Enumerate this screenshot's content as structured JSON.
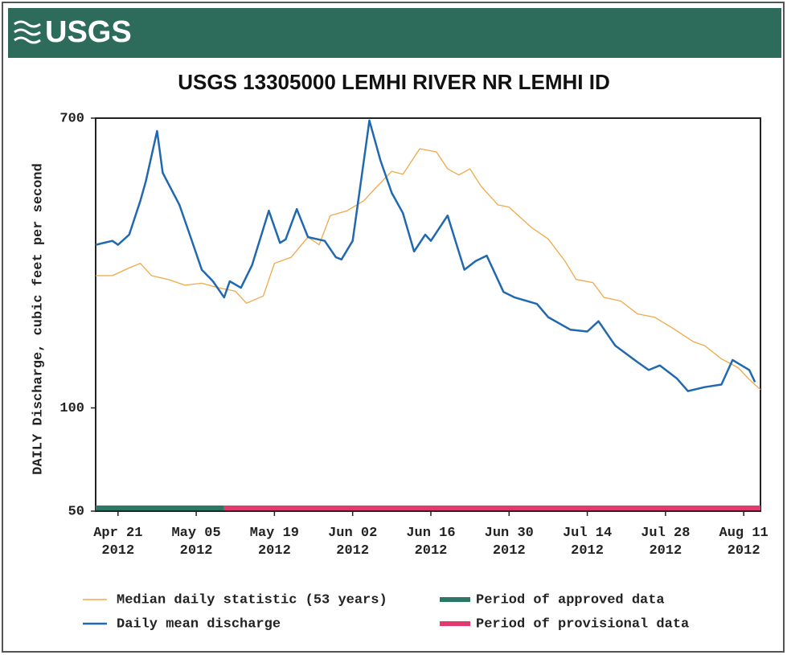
{
  "header": {
    "logo": "USGS"
  },
  "chart_data": {
    "type": "line",
    "title": "USGS 13305000 LEMHI RIVER NR LEMHI ID",
    "y_label": "DAILY Discharge, cubic feet per second",
    "log_y": true,
    "xlim": [
      "2012-04-17",
      "2012-08-14"
    ],
    "xticks": [
      {
        "value": "2012-04-21",
        "label": "Apr 21\n2012"
      },
      {
        "value": "2012-05-05",
        "label": "May 05\n2012"
      },
      {
        "value": "2012-05-19",
        "label": "May 19\n2012"
      },
      {
        "value": "2012-06-02",
        "label": "Jun 02\n2012"
      },
      {
        "value": "2012-06-16",
        "label": "Jun 16\n2012"
      },
      {
        "value": "2012-06-30",
        "label": "Jun 30\n2012"
      },
      {
        "value": "2012-07-14",
        "label": "Jul 14\n2012"
      },
      {
        "value": "2012-07-28",
        "label": "Jul 28\n2012"
      },
      {
        "value": "2012-08-11",
        "label": "Aug 11\n2012"
      }
    ],
    "ylim": [
      50,
      700
    ],
    "yticks": [
      50,
      100,
      700
    ],
    "series": [
      {
        "name": "Median daily statistic (53 years)",
        "color": "#f0a848",
        "x": [
          "2012-04-17",
          "2012-04-20",
          "2012-04-23",
          "2012-04-25",
          "2012-04-27",
          "2012-04-30",
          "2012-05-03",
          "2012-05-06",
          "2012-05-09",
          "2012-05-12",
          "2012-05-14",
          "2012-05-17",
          "2012-05-19",
          "2012-05-22",
          "2012-05-25",
          "2012-05-27",
          "2012-05-29",
          "2012-06-01",
          "2012-06-04",
          "2012-06-06",
          "2012-06-09",
          "2012-06-11",
          "2012-06-14",
          "2012-06-17",
          "2012-06-19",
          "2012-06-21",
          "2012-06-23",
          "2012-06-25",
          "2012-06-28",
          "2012-06-30",
          "2012-07-04",
          "2012-07-07",
          "2012-07-10",
          "2012-07-12",
          "2012-07-15",
          "2012-07-17",
          "2012-07-20",
          "2012-07-23",
          "2012-07-26",
          "2012-07-29",
          "2012-08-02",
          "2012-08-04",
          "2012-08-07",
          "2012-08-10",
          "2012-08-12",
          "2012-08-14"
        ],
        "values": [
          243,
          243,
          256,
          264,
          243,
          237,
          228,
          231,
          224,
          219,
          202,
          212,
          264,
          275,
          315,
          299,
          364,
          376,
          402,
          436,
          490,
          480,
          570,
          558,
          498,
          478,
          498,
          443,
          391,
          385,
          336,
          311,
          268,
          237,
          232,
          210,
          205,
          188,
          184,
          172,
          156,
          152,
          139,
          131,
          121,
          113
        ]
      },
      {
        "name": "Daily mean discharge",
        "color": "#2068b0",
        "x": [
          "2012-04-17",
          "2012-04-20",
          "2012-04-21",
          "2012-04-23",
          "2012-04-25",
          "2012-04-26",
          "2012-04-28",
          "2012-04-29",
          "2012-05-02",
          "2012-05-04",
          "2012-05-06",
          "2012-05-08",
          "2012-05-10",
          "2012-05-11",
          "2012-05-13",
          "2012-05-15",
          "2012-05-18",
          "2012-05-20",
          "2012-05-21",
          "2012-05-23",
          "2012-05-25",
          "2012-05-28",
          "2012-05-30",
          "2012-05-31",
          "2012-06-02",
          "2012-06-04",
          "2012-06-05",
          "2012-06-07",
          "2012-06-09",
          "2012-06-11",
          "2012-06-13",
          "2012-06-15",
          "2012-06-16",
          "2012-06-19",
          "2012-06-22",
          "2012-06-24",
          "2012-06-26",
          "2012-06-29",
          "2012-07-01",
          "2012-07-05",
          "2012-07-07",
          "2012-07-11",
          "2012-07-14",
          "2012-07-16",
          "2012-07-19",
          "2012-07-23",
          "2012-07-25",
          "2012-07-27",
          "2012-07-30",
          "2012-08-01",
          "2012-08-04",
          "2012-08-07",
          "2012-08-09",
          "2012-08-12",
          "2012-08-13"
        ],
        "values": [
          299,
          307,
          299,
          320,
          402,
          459,
          642,
          485,
          391,
          315,
          253,
          234,
          210,
          234,
          224,
          261,
          376,
          303,
          310,
          380,
          315,
          307,
          275,
          271,
          307,
          526,
          689,
          526,
          424,
          370,
          286,
          320,
          307,
          364,
          253,
          268,
          278,
          218,
          210,
          201,
          184,
          169,
          167,
          179,
          152,
          136,
          129,
          133,
          122,
          112,
          115,
          117,
          138,
          129,
          119
        ]
      }
    ],
    "periods": [
      {
        "name": "Period of approved data",
        "color": "#2c7766",
        "start": "2012-04-17",
        "end": "2012-05-10"
      },
      {
        "name": "Period of provisional data",
        "color": "#e03a6e",
        "start": "2012-05-10",
        "end": "2012-08-14"
      }
    ]
  }
}
